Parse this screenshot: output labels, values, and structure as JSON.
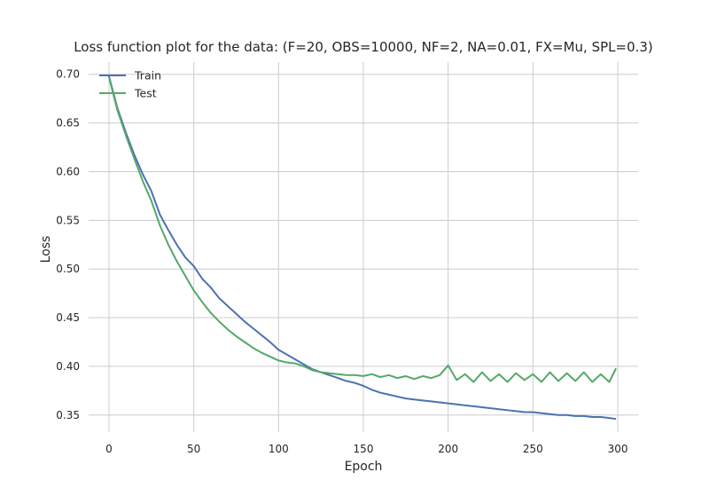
{
  "chart_data": {
    "type": "line",
    "title": "Loss function plot for the data: (F=20, OBS=10000, NF=2, NA=0.01, FX=Mu, SPL=0.3)",
    "xlabel": "Epoch",
    "ylabel": "Loss",
    "xlim": [
      -12,
      312
    ],
    "ylim": [
      0.3325,
      0.7125
    ],
    "xticks": [
      0,
      50,
      100,
      150,
      200,
      250,
      300
    ],
    "xtick_labels": [
      "0",
      "50",
      "100",
      "150",
      "200",
      "250",
      "300"
    ],
    "yticks": [
      0.35,
      0.4,
      0.45,
      0.5,
      0.55,
      0.6,
      0.65,
      0.7
    ],
    "ytick_labels": [
      "0.35",
      "0.40",
      "0.45",
      "0.50",
      "0.55",
      "0.60",
      "0.65",
      "0.70"
    ],
    "grid": true,
    "legend_position": "top-left",
    "x": [
      0,
      5,
      10,
      15,
      20,
      25,
      30,
      35,
      40,
      45,
      50,
      55,
      60,
      65,
      70,
      75,
      80,
      85,
      90,
      95,
      100,
      105,
      110,
      115,
      120,
      125,
      130,
      135,
      140,
      145,
      150,
      155,
      160,
      165,
      170,
      175,
      180,
      185,
      190,
      195,
      200,
      205,
      210,
      215,
      220,
      225,
      230,
      235,
      240,
      245,
      250,
      255,
      260,
      265,
      270,
      275,
      280,
      285,
      290,
      295,
      299
    ],
    "series": [
      {
        "name": "Train",
        "color": "#4c72b0",
        "values": [
          0.698,
          0.665,
          0.64,
          0.617,
          0.597,
          0.58,
          0.556,
          0.54,
          0.525,
          0.512,
          0.503,
          0.49,
          0.481,
          0.47,
          0.462,
          0.454,
          0.446,
          0.439,
          0.432,
          0.425,
          0.417,
          0.412,
          0.407,
          0.402,
          0.397,
          0.394,
          0.391,
          0.388,
          0.385,
          0.383,
          0.38,
          0.376,
          0.373,
          0.371,
          0.369,
          0.367,
          0.366,
          0.365,
          0.364,
          0.363,
          0.362,
          0.361,
          0.36,
          0.359,
          0.358,
          0.357,
          0.356,
          0.355,
          0.354,
          0.353,
          0.353,
          0.352,
          0.351,
          0.35,
          0.35,
          0.349,
          0.349,
          0.348,
          0.348,
          0.347,
          0.346
        ]
      },
      {
        "name": "Test",
        "color": "#55a868",
        "values": [
          0.697,
          0.663,
          0.637,
          0.613,
          0.59,
          0.57,
          0.545,
          0.525,
          0.508,
          0.493,
          0.478,
          0.466,
          0.455,
          0.446,
          0.438,
          0.431,
          0.425,
          0.419,
          0.414,
          0.41,
          0.406,
          0.404,
          0.403,
          0.4,
          0.396,
          0.394,
          0.393,
          0.392,
          0.391,
          0.391,
          0.39,
          0.392,
          0.389,
          0.391,
          0.388,
          0.39,
          0.387,
          0.39,
          0.388,
          0.391,
          0.401,
          0.386,
          0.392,
          0.384,
          0.394,
          0.385,
          0.392,
          0.384,
          0.393,
          0.386,
          0.392,
          0.384,
          0.394,
          0.385,
          0.393,
          0.385,
          0.394,
          0.384,
          0.392,
          0.384,
          0.398
        ]
      }
    ]
  }
}
